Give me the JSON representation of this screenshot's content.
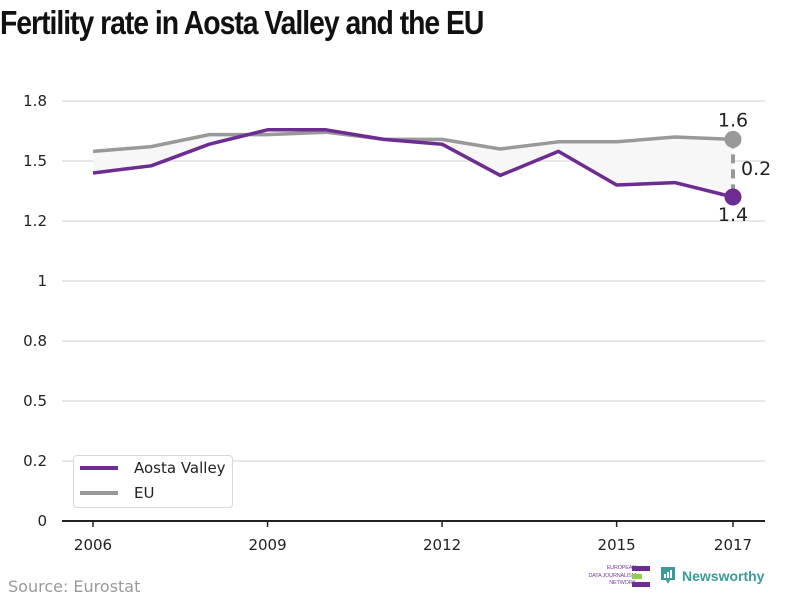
{
  "title": "Fertility rate in Aosta Valley and the EU",
  "source": "Source: Eurostat",
  "colors": {
    "aosta": "#6c2c91",
    "eu": "#999999",
    "band": "#f7f7f7",
    "grid": "#e0e0e0",
    "axis": "#222222",
    "edjn_purple": "#6c2c91",
    "edjn_green": "#8fd14f",
    "newsworthy": "#3b9b9b"
  },
  "logos": {
    "edjn_lines": [
      "EUROPEAN",
      "DATA JOURNALISM",
      "NETWORK"
    ],
    "newsworthy": "Newsworthy"
  },
  "chart_data": {
    "type": "line",
    "title": "Fertility rate in Aosta Valley and the EU",
    "xlabel": "",
    "ylabel": "",
    "x": [
      2006,
      2007,
      2008,
      2009,
      2010,
      2011,
      2012,
      2013,
      2014,
      2015,
      2016,
      2017
    ],
    "x_ticks": [
      2006,
      2009,
      2012,
      2015,
      2017
    ],
    "y_ticks": [
      0,
      0.25,
      0.5,
      0.75,
      1,
      1.25,
      1.5,
      1.75
    ],
    "y_tick_labels": [
      "0",
      "0.2",
      "0.5",
      "0.8",
      "1",
      "1.2",
      "1.5",
      "1.8"
    ],
    "ylim": [
      0,
      1.75
    ],
    "grid": true,
    "legend_position": "bottom-left",
    "series": [
      {
        "name": "Aosta Valley",
        "color_key": "aosta",
        "values": [
          1.45,
          1.48,
          1.57,
          1.63,
          1.63,
          1.59,
          1.57,
          1.44,
          1.54,
          1.4,
          1.41,
          1.35
        ]
      },
      {
        "name": "EU",
        "color_key": "eu",
        "values": [
          1.54,
          1.56,
          1.61,
          1.61,
          1.62,
          1.59,
          1.59,
          1.55,
          1.58,
          1.58,
          1.6,
          1.59
        ]
      }
    ],
    "annotations": {
      "eu_last_label": "1.6",
      "aosta_last_label": "1.4",
      "difference_label": "0.2"
    }
  }
}
